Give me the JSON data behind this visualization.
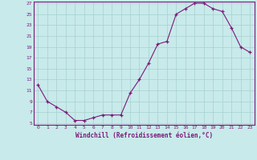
{
  "x": [
    0,
    1,
    2,
    3,
    4,
    5,
    6,
    7,
    8,
    9,
    10,
    11,
    12,
    13,
    14,
    15,
    16,
    17,
    18,
    19,
    20,
    21,
    22,
    23
  ],
  "y": [
    12,
    9,
    8,
    7,
    5.5,
    5.5,
    6,
    6.5,
    6.5,
    6.5,
    10.5,
    13,
    16,
    19.5,
    20,
    25,
    26,
    27,
    27,
    26,
    25.5,
    22.5,
    19,
    18
  ],
  "line_color": "#7B1A7B",
  "background_color": "#c8eaea",
  "grid_color": "#a8d0d0",
  "xlabel": "Windchill (Refroidissement éolien,°C)",
  "ylim": [
    5,
    27
  ],
  "xlim": [
    -0.5,
    23.5
  ],
  "yticks": [
    5,
    7,
    9,
    11,
    13,
    15,
    17,
    19,
    21,
    23,
    25,
    27
  ],
  "xticks": [
    0,
    1,
    2,
    3,
    4,
    5,
    6,
    7,
    8,
    9,
    10,
    11,
    12,
    13,
    14,
    15,
    16,
    17,
    18,
    19,
    20,
    21,
    22,
    23
  ]
}
